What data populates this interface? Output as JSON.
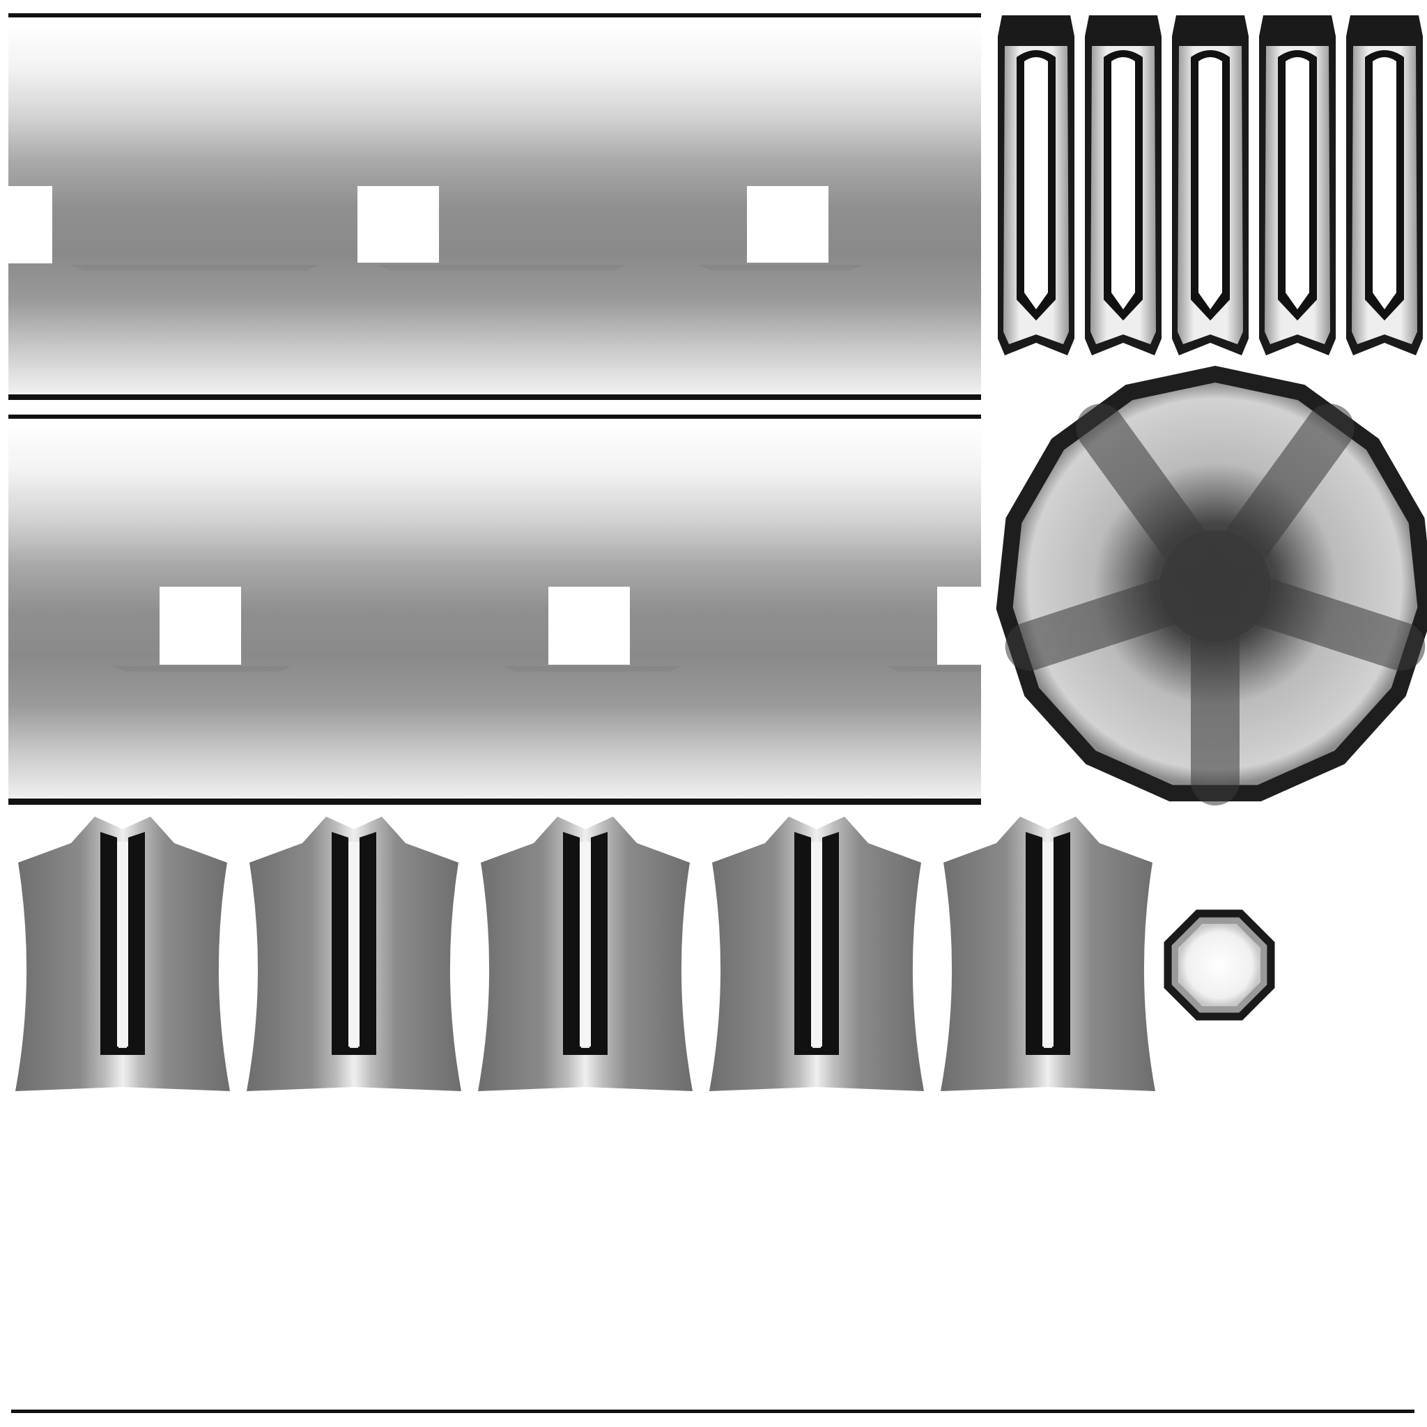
{
  "texture": {
    "kind": "ambient-occlusion bake",
    "background": "#ffffff",
    "ink": "#111111",
    "rail_gradient": [
      "#ffffff",
      "#f2f2f2",
      "#d4d4d4",
      "#a9a9a9",
      "#8f8f8f",
      "#8a8a8a",
      "#9a9a9a",
      "#c8c8c8",
      "#f0f0f0"
    ],
    "rails": [
      {
        "name": "upper-rail",
        "square_holes": 3
      },
      {
        "name": "lower-rail",
        "square_holes": 3
      }
    ],
    "slot_tabs": {
      "count": 5
    },
    "fins": {
      "count": 5
    },
    "star_disc": {
      "sides": 15,
      "arms": 5
    },
    "small_octagon": {
      "sides": 8
    }
  }
}
